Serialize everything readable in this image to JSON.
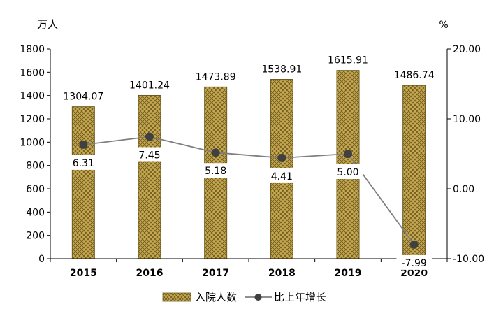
{
  "chart_data": {
    "type": "bar",
    "left_unit": "万人",
    "right_unit": "%",
    "categories": [
      "2015",
      "2016",
      "2017",
      "2018",
      "2019",
      "2020"
    ],
    "series": [
      {
        "name": "入院人数",
        "kind": "bar",
        "axis": "left",
        "values": [
          1304.07,
          1401.24,
          1473.89,
          1538.91,
          1615.91,
          1486.74
        ],
        "labels": [
          "1304.07",
          "1401.24",
          "1473.89",
          "1538.91",
          "1615.91",
          "1486.74"
        ]
      },
      {
        "name": "比上年增长",
        "kind": "line",
        "axis": "right",
        "values": [
          6.31,
          7.45,
          5.18,
          4.41,
          5.0,
          -7.99
        ],
        "labels": [
          "6.31",
          "7.45",
          "5.18",
          "4.41",
          "5.00",
          "-7.99"
        ]
      }
    ],
    "left_axis": {
      "range": [
        0,
        1800
      ],
      "ticks": [
        "0",
        "200",
        "400",
        "600",
        "800",
        "1000",
        "1200",
        "1400",
        "1600",
        "1800"
      ]
    },
    "right_axis": {
      "range": [
        -10,
        20
      ],
      "ticks": [
        "-10.00",
        "0.00",
        "10.00",
        "20.00"
      ]
    },
    "grid": false,
    "legend_position": "bottom",
    "colors": {
      "bar_fill": "#c8a951",
      "bar_hatch": "#6b5a1e",
      "line": "#7f7f7f",
      "marker": "#404040",
      "axis": "#000000"
    }
  }
}
